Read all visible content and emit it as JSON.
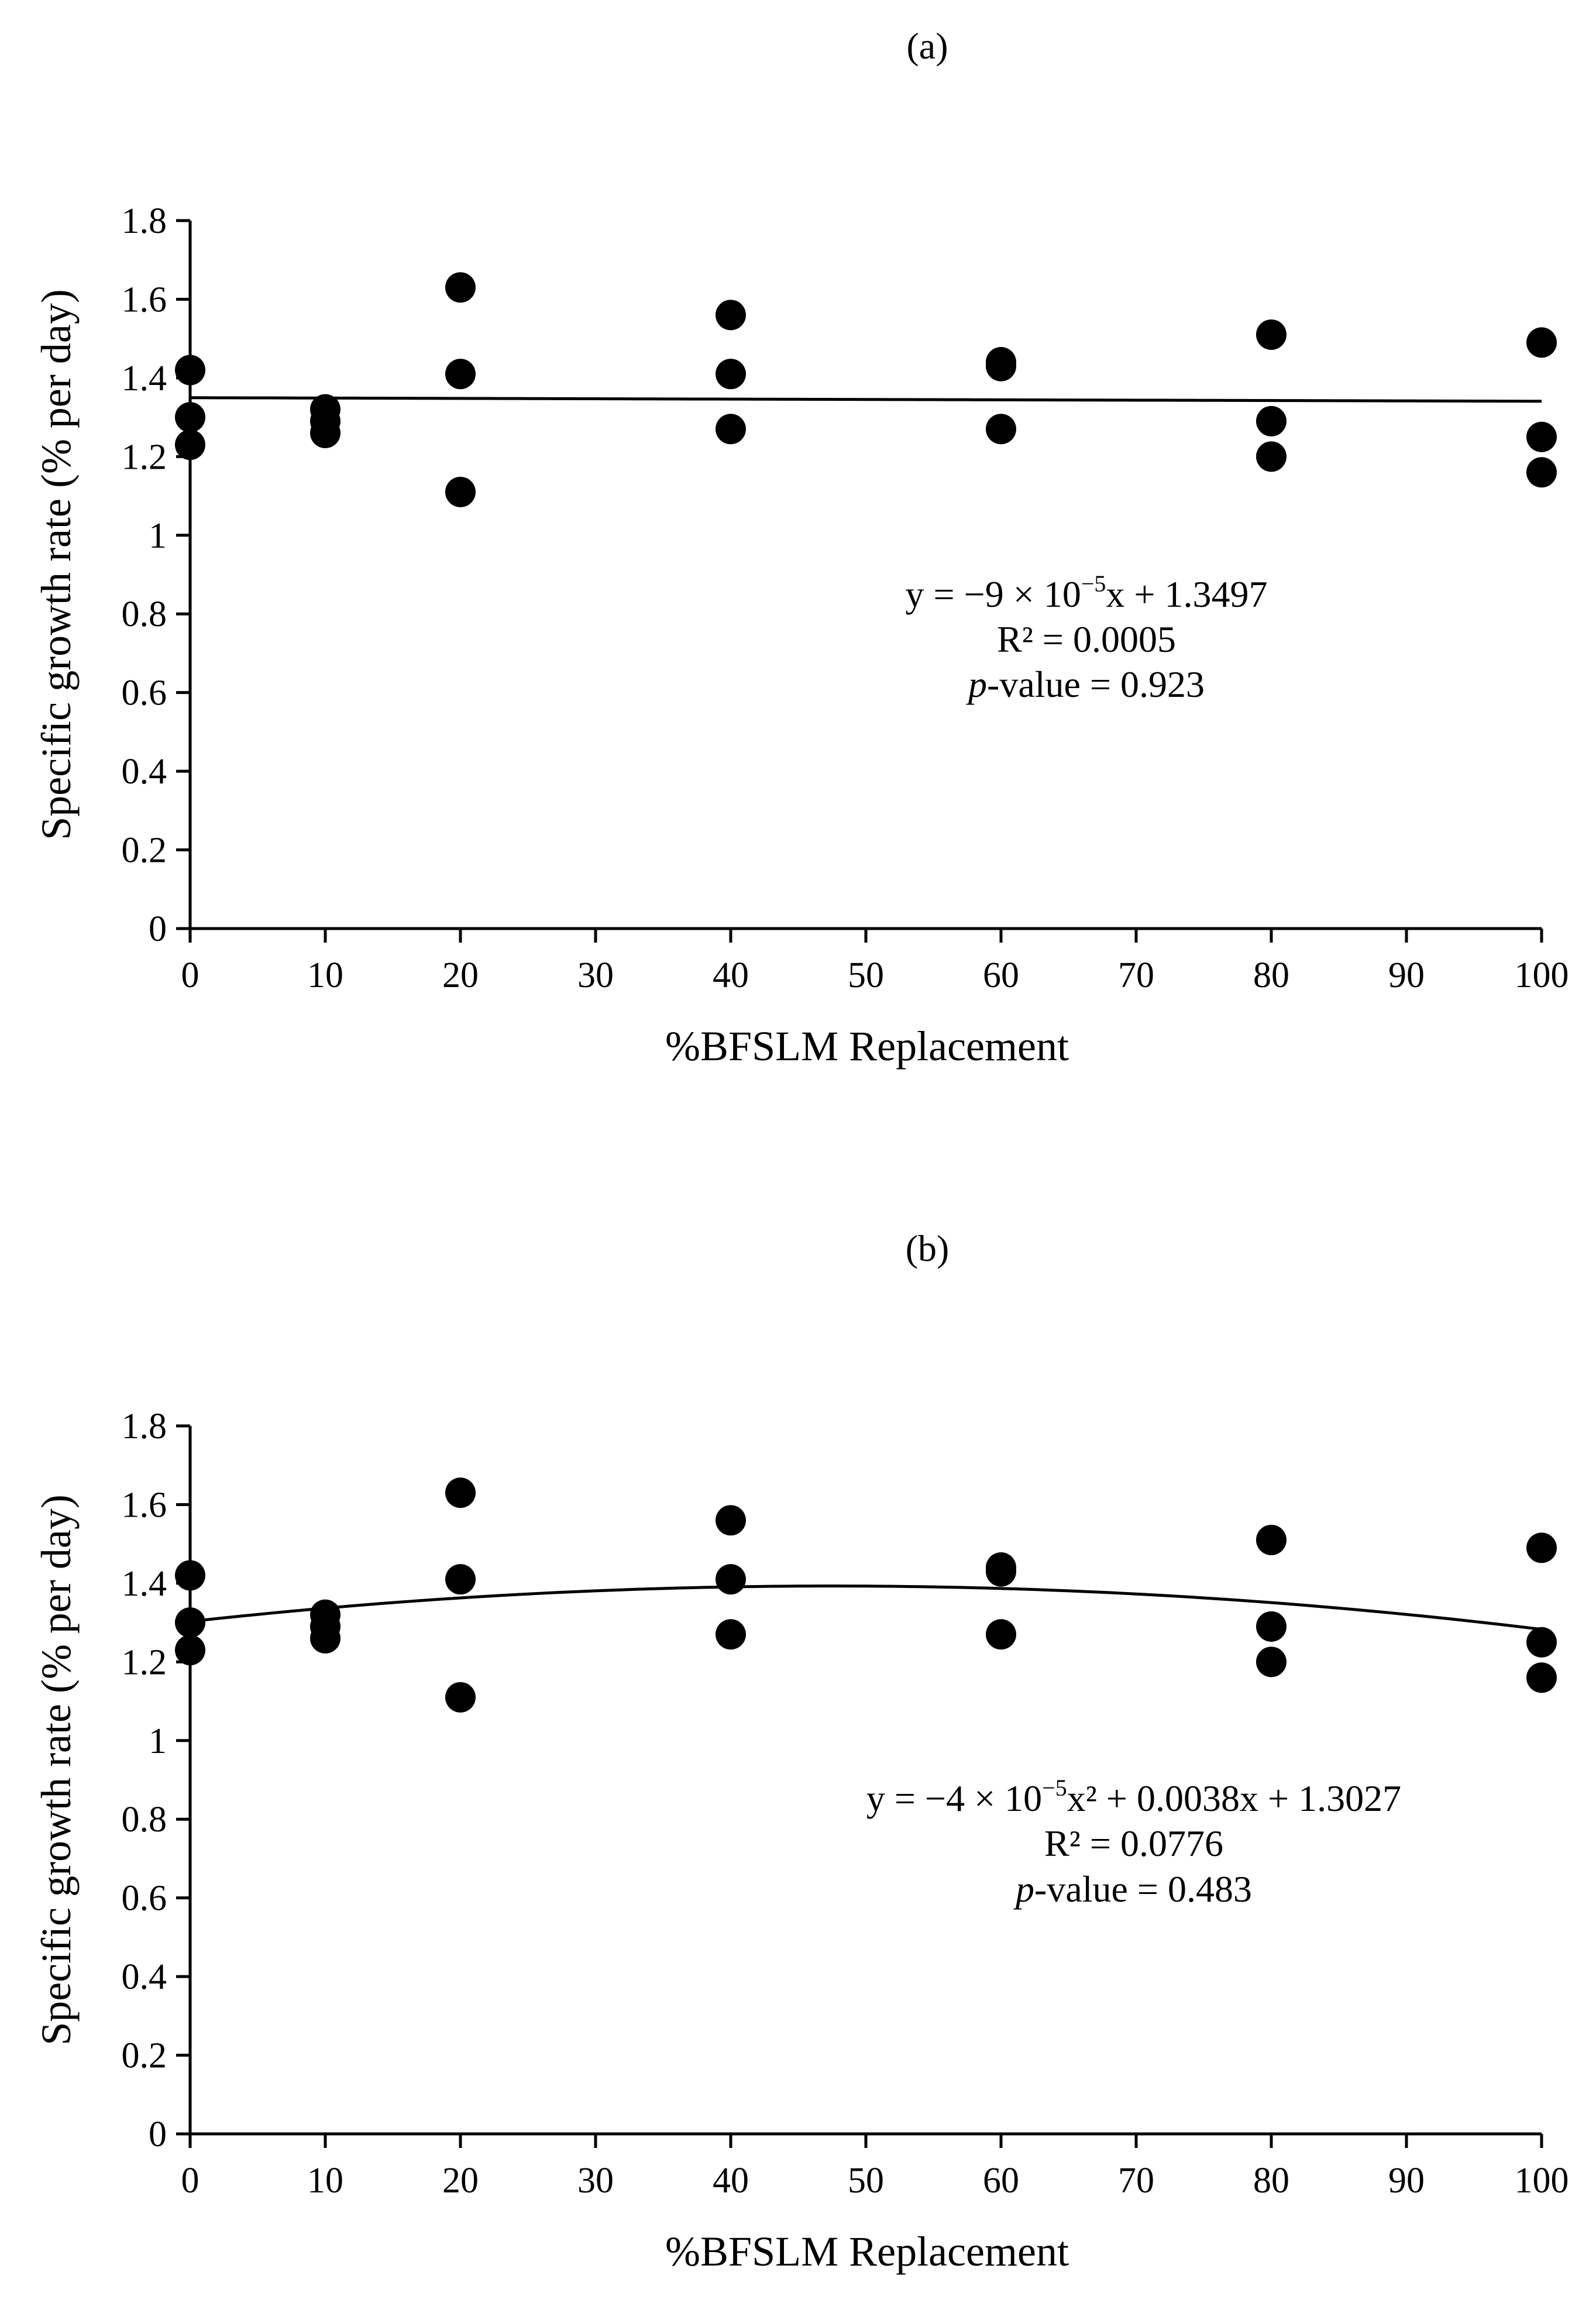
{
  "chart_data": [
    {
      "type": "scatter",
      "panel_label": "(a)",
      "xlabel": "%BFSLM Replacement",
      "ylabel": "Specific growth rate (% per day)",
      "xlim": [
        0,
        100
      ],
      "ylim": [
        0,
        1.8
      ],
      "x_ticks": [
        0,
        10,
        20,
        30,
        40,
        50,
        60,
        70,
        80,
        90,
        100
      ],
      "y_ticks": [
        0,
        0.2,
        0.4,
        0.6,
        0.8,
        1,
        1.2,
        1.4,
        1.6,
        1.8
      ],
      "x_tick_labels": [
        "0",
        "10",
        "20",
        "30",
        "40",
        "50",
        "60",
        "70",
        "80",
        "90",
        "100"
      ],
      "y_tick_labels": [
        "0",
        "0.2",
        "0.4",
        "0.6",
        "0.8",
        "1",
        "1.2",
        "1.4",
        "1.6",
        "1.8"
      ],
      "points": [
        {
          "x": 0,
          "y": 1.42
        },
        {
          "x": 0,
          "y": 1.3
        },
        {
          "x": 0,
          "y": 1.23
        },
        {
          "x": 10,
          "y": 1.32
        },
        {
          "x": 10,
          "y": 1.29
        },
        {
          "x": 10,
          "y": 1.26
        },
        {
          "x": 20,
          "y": 1.63
        },
        {
          "x": 20,
          "y": 1.41
        },
        {
          "x": 20,
          "y": 1.11
        },
        {
          "x": 40,
          "y": 1.56
        },
        {
          "x": 40,
          "y": 1.41
        },
        {
          "x": 40,
          "y": 1.27
        },
        {
          "x": 60,
          "y": 1.44
        },
        {
          "x": 60,
          "y": 1.43
        },
        {
          "x": 60,
          "y": 1.27
        },
        {
          "x": 80,
          "y": 1.51
        },
        {
          "x": 80,
          "y": 1.29
        },
        {
          "x": 80,
          "y": 1.2
        },
        {
          "x": 100,
          "y": 1.49
        },
        {
          "x": 100,
          "y": 1.25
        },
        {
          "x": 100,
          "y": 1.16
        }
      ],
      "trendline": {
        "type": "linear",
        "a": 0,
        "b": -9e-05,
        "c": 1.3497
      },
      "equation_parts": {
        "pre": "y = −9 × 10",
        "sup": "−5",
        "post": "x + 1.3497"
      },
      "r2": "R² = 0.0005",
      "p_label": "p",
      "p_rest": "-value = 0.923"
    },
    {
      "type": "scatter",
      "panel_label": "(b)",
      "xlabel": "%BFSLM Replacement",
      "ylabel": "Specific growth rate (% per day)",
      "xlim": [
        0,
        100
      ],
      "ylim": [
        0,
        1.8
      ],
      "x_ticks": [
        0,
        10,
        20,
        30,
        40,
        50,
        60,
        70,
        80,
        90,
        100
      ],
      "y_ticks": [
        0,
        0.2,
        0.4,
        0.6,
        0.8,
        1,
        1.2,
        1.4,
        1.6,
        1.8
      ],
      "x_tick_labels": [
        "0",
        "10",
        "20",
        "30",
        "40",
        "50",
        "60",
        "70",
        "80",
        "90",
        "100"
      ],
      "y_tick_labels": [
        "0",
        "0.2",
        "0.4",
        "0.6",
        "0.8",
        "1",
        "1.2",
        "1.4",
        "1.6",
        "1.8"
      ],
      "points": [
        {
          "x": 0,
          "y": 1.42
        },
        {
          "x": 0,
          "y": 1.3
        },
        {
          "x": 0,
          "y": 1.23
        },
        {
          "x": 10,
          "y": 1.32
        },
        {
          "x": 10,
          "y": 1.29
        },
        {
          "x": 10,
          "y": 1.26
        },
        {
          "x": 20,
          "y": 1.63
        },
        {
          "x": 20,
          "y": 1.41
        },
        {
          "x": 20,
          "y": 1.11
        },
        {
          "x": 40,
          "y": 1.56
        },
        {
          "x": 40,
          "y": 1.41
        },
        {
          "x": 40,
          "y": 1.27
        },
        {
          "x": 60,
          "y": 1.44
        },
        {
          "x": 60,
          "y": 1.43
        },
        {
          "x": 60,
          "y": 1.27
        },
        {
          "x": 80,
          "y": 1.51
        },
        {
          "x": 80,
          "y": 1.29
        },
        {
          "x": 80,
          "y": 1.2
        },
        {
          "x": 100,
          "y": 1.49
        },
        {
          "x": 100,
          "y": 1.25
        },
        {
          "x": 100,
          "y": 1.16
        }
      ],
      "trendline": {
        "type": "quadratic",
        "a": -4e-05,
        "b": 0.0038,
        "c": 1.3027
      },
      "equation_parts": {
        "pre": "y = −4 × 10",
        "sup": "−5",
        "post": "x² + 0.0038x + 1.3027"
      },
      "r2": "R² = 0.0776",
      "p_label": "p",
      "p_rest": "-value = 0.483"
    }
  ]
}
